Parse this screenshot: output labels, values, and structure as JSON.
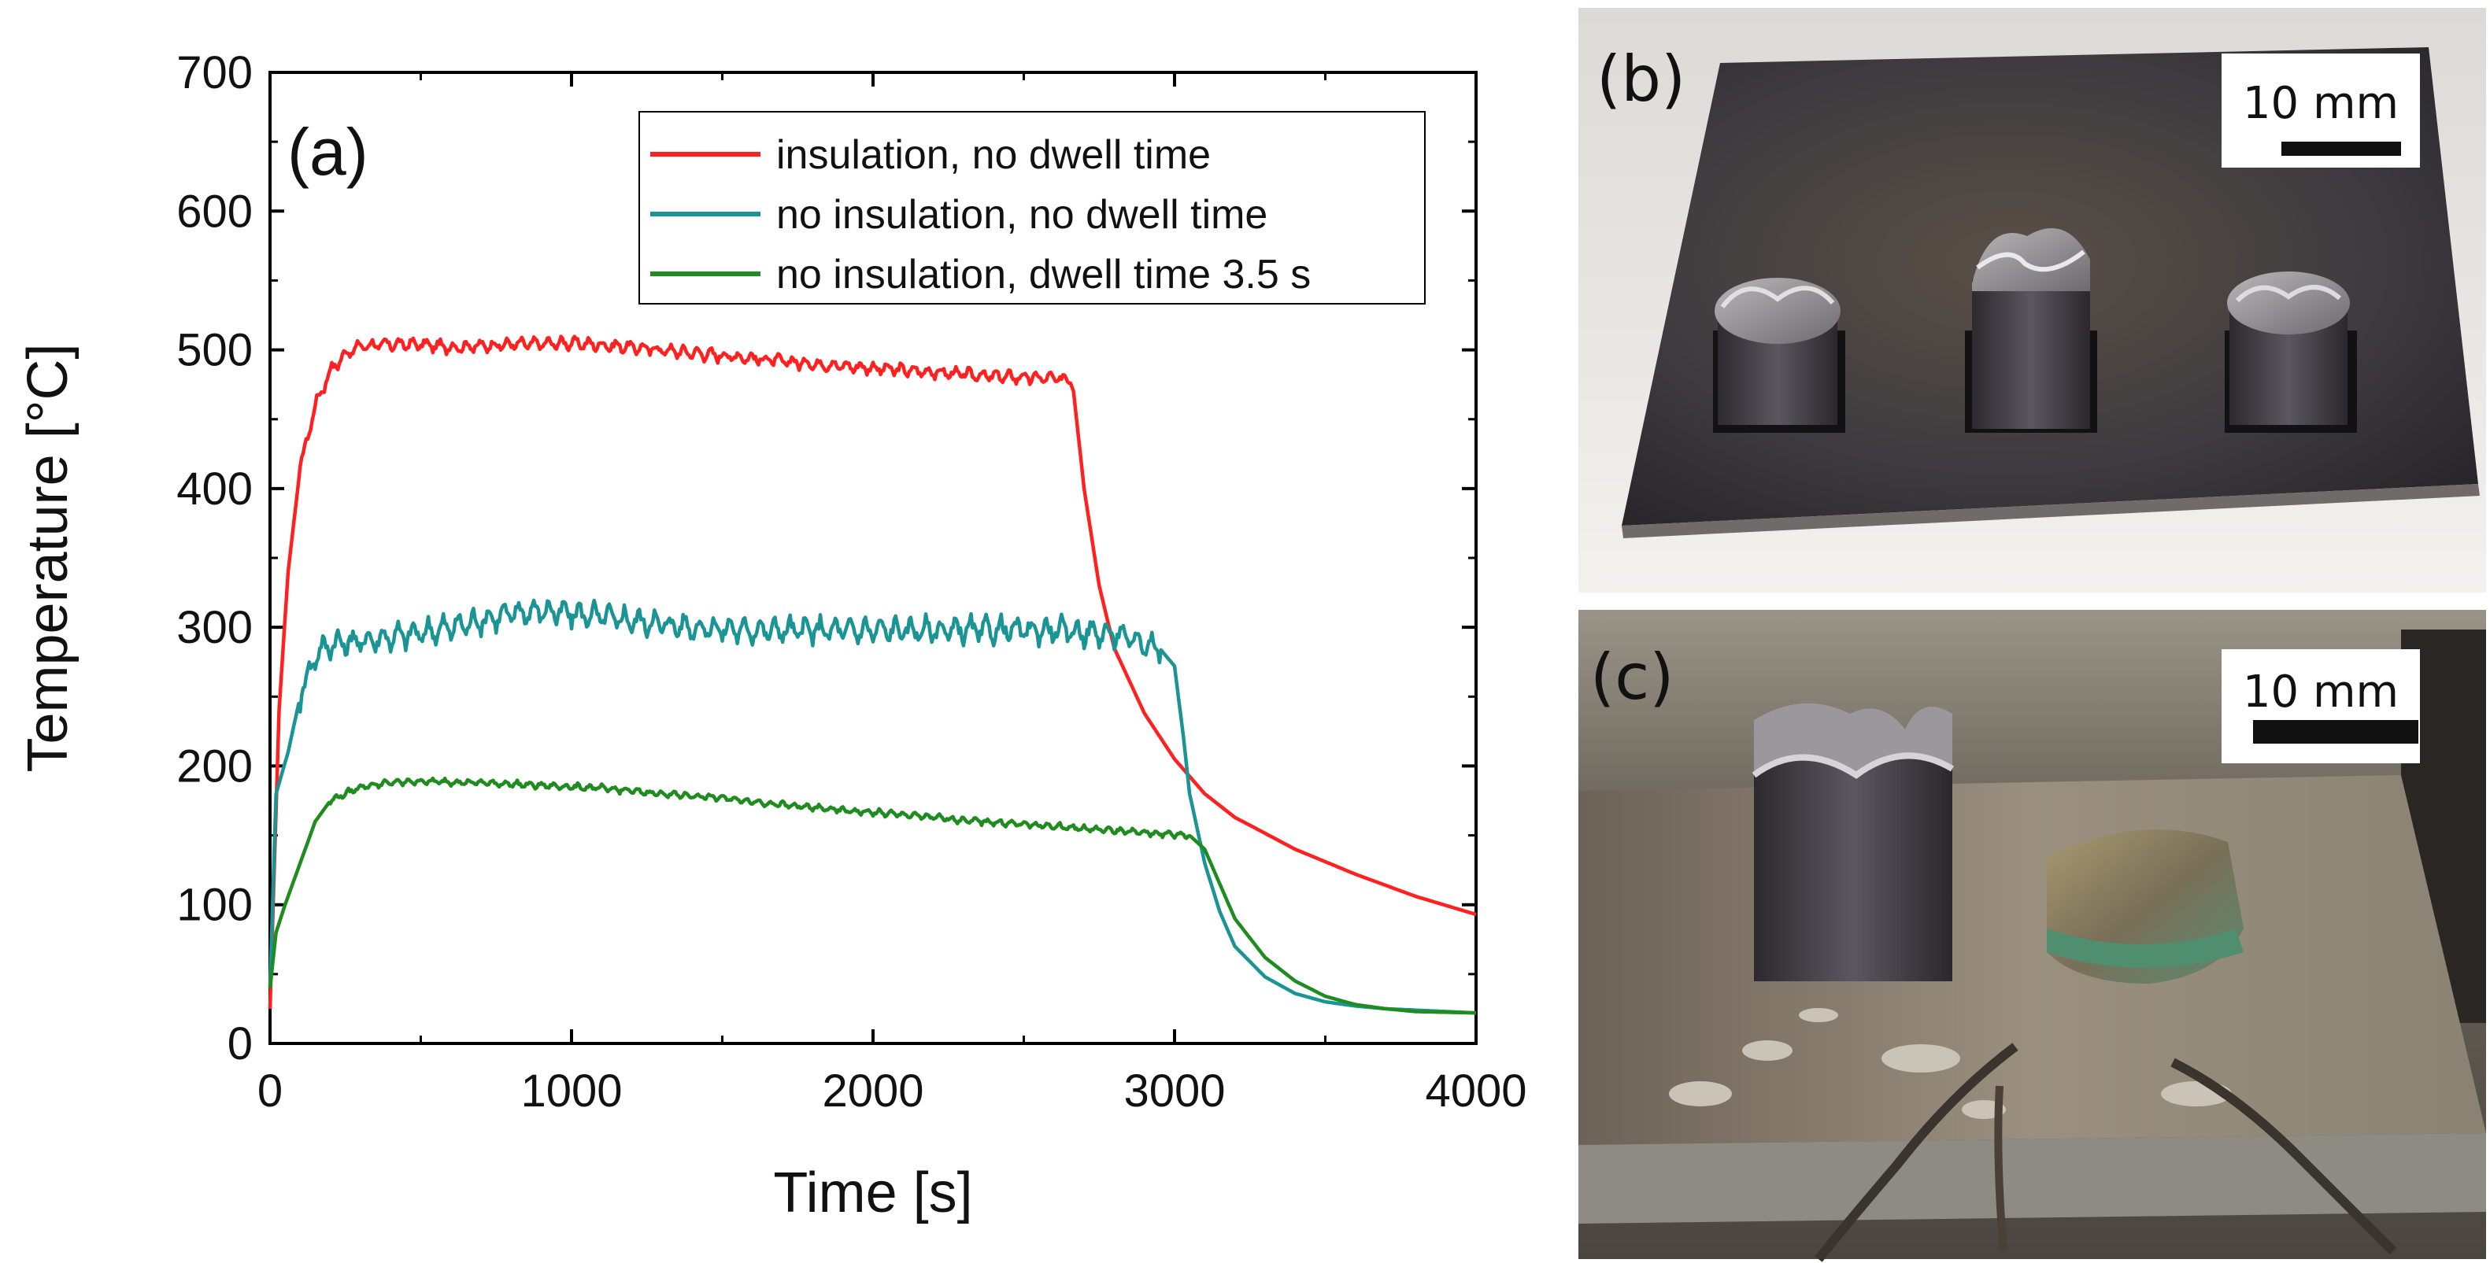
{
  "chart_data": {
    "type": "line",
    "panel_label": "(a)",
    "title": "",
    "xlabel": "Time [s]",
    "ylabel": "Temperature  [°C]",
    "xlim": [
      0,
      4000
    ],
    "ylim": [
      0,
      700
    ],
    "x_ticks": [
      0,
      1000,
      2000,
      3000,
      4000
    ],
    "x_tick_labels": [
      "0",
      "1000",
      "2000",
      "3000",
      "4000"
    ],
    "y_ticks": [
      0,
      100,
      200,
      300,
      400,
      500,
      600,
      700
    ],
    "y_tick_labels": [
      "0",
      "100",
      "200",
      "300",
      "400",
      "500",
      "600",
      "700"
    ],
    "grid": false,
    "legend_position": "top-right",
    "series": [
      {
        "name": "insulation, no dwell time",
        "color": "#ff2020",
        "noise": {
          "amplitude": 8,
          "from": 100,
          "to": 2650,
          "period": 45
        },
        "points": [
          [
            0,
            25
          ],
          [
            30,
            240
          ],
          [
            60,
            340
          ],
          [
            100,
            415
          ],
          [
            150,
            460
          ],
          [
            200,
            485
          ],
          [
            250,
            497
          ],
          [
            300,
            503
          ],
          [
            400,
            504
          ],
          [
            500,
            504
          ],
          [
            600,
            502
          ],
          [
            700,
            503
          ],
          [
            800,
            504
          ],
          [
            1000,
            505
          ],
          [
            1200,
            502
          ],
          [
            1400,
            498
          ],
          [
            1600,
            494
          ],
          [
            1800,
            490
          ],
          [
            2000,
            487
          ],
          [
            2200,
            484
          ],
          [
            2400,
            481
          ],
          [
            2650,
            479
          ],
          [
            2665,
            470
          ],
          [
            2700,
            400
          ],
          [
            2750,
            330
          ],
          [
            2800,
            285
          ],
          [
            2900,
            238
          ],
          [
            3000,
            205
          ],
          [
            3100,
            180
          ],
          [
            3200,
            163
          ],
          [
            3400,
            140
          ],
          [
            3600,
            122
          ],
          [
            3800,
            106
          ],
          [
            4000,
            93
          ]
        ]
      },
      {
        "name": "no insulation, no dwell time",
        "color": "#1a9494",
        "noise": {
          "amplitude": 16,
          "from": 100,
          "to": 2950,
          "period": 50
        },
        "points": [
          [
            0,
            40
          ],
          [
            20,
            180
          ],
          [
            60,
            210
          ],
          [
            100,
            250
          ],
          [
            150,
            280
          ],
          [
            200,
            288
          ],
          [
            300,
            290
          ],
          [
            400,
            293
          ],
          [
            500,
            296
          ],
          [
            600,
            300
          ],
          [
            700,
            305
          ],
          [
            800,
            310
          ],
          [
            900,
            312
          ],
          [
            1000,
            310
          ],
          [
            1100,
            308
          ],
          [
            1200,
            305
          ],
          [
            1400,
            300
          ],
          [
            1600,
            298
          ],
          [
            1800,
            298
          ],
          [
            2000,
            298
          ],
          [
            2200,
            298
          ],
          [
            2400,
            298
          ],
          [
            2600,
            298
          ],
          [
            2800,
            295
          ],
          [
            2950,
            285
          ],
          [
            3000,
            272
          ],
          [
            3030,
            220
          ],
          [
            3050,
            180
          ],
          [
            3100,
            130
          ],
          [
            3150,
            95
          ],
          [
            3200,
            70
          ],
          [
            3300,
            48
          ],
          [
            3400,
            36
          ],
          [
            3500,
            30
          ],
          [
            3600,
            27
          ],
          [
            3700,
            25
          ],
          [
            4000,
            22
          ]
        ]
      },
      {
        "name": "no insulation, dwell time 3.5 s",
        "color": "#1e8c1e",
        "noise": {
          "amplitude": 4,
          "from": 200,
          "to": 3050,
          "period": 40
        },
        "points": [
          [
            0,
            40
          ],
          [
            20,
            80
          ],
          [
            50,
            100
          ],
          [
            100,
            130
          ],
          [
            150,
            160
          ],
          [
            200,
            175
          ],
          [
            300,
            185
          ],
          [
            400,
            188
          ],
          [
            500,
            189
          ],
          [
            700,
            188
          ],
          [
            900,
            186
          ],
          [
            1100,
            184
          ],
          [
            1300,
            180
          ],
          [
            1500,
            177
          ],
          [
            1700,
            172
          ],
          [
            1900,
            168
          ],
          [
            2100,
            165
          ],
          [
            2300,
            161
          ],
          [
            2500,
            158
          ],
          [
            2700,
            155
          ],
          [
            2900,
            152
          ],
          [
            3050,
            150
          ],
          [
            3100,
            140
          ],
          [
            3150,
            115
          ],
          [
            3200,
            90
          ],
          [
            3300,
            62
          ],
          [
            3400,
            45
          ],
          [
            3500,
            34
          ],
          [
            3600,
            28
          ],
          [
            3700,
            25
          ],
          [
            3800,
            23
          ],
          [
            4000,
            22
          ]
        ]
      }
    ]
  },
  "photos": {
    "b": {
      "label": "(b)",
      "scale_bar": "10 mm"
    },
    "c": {
      "label": "(c)",
      "scale_bar": "10 mm"
    }
  }
}
